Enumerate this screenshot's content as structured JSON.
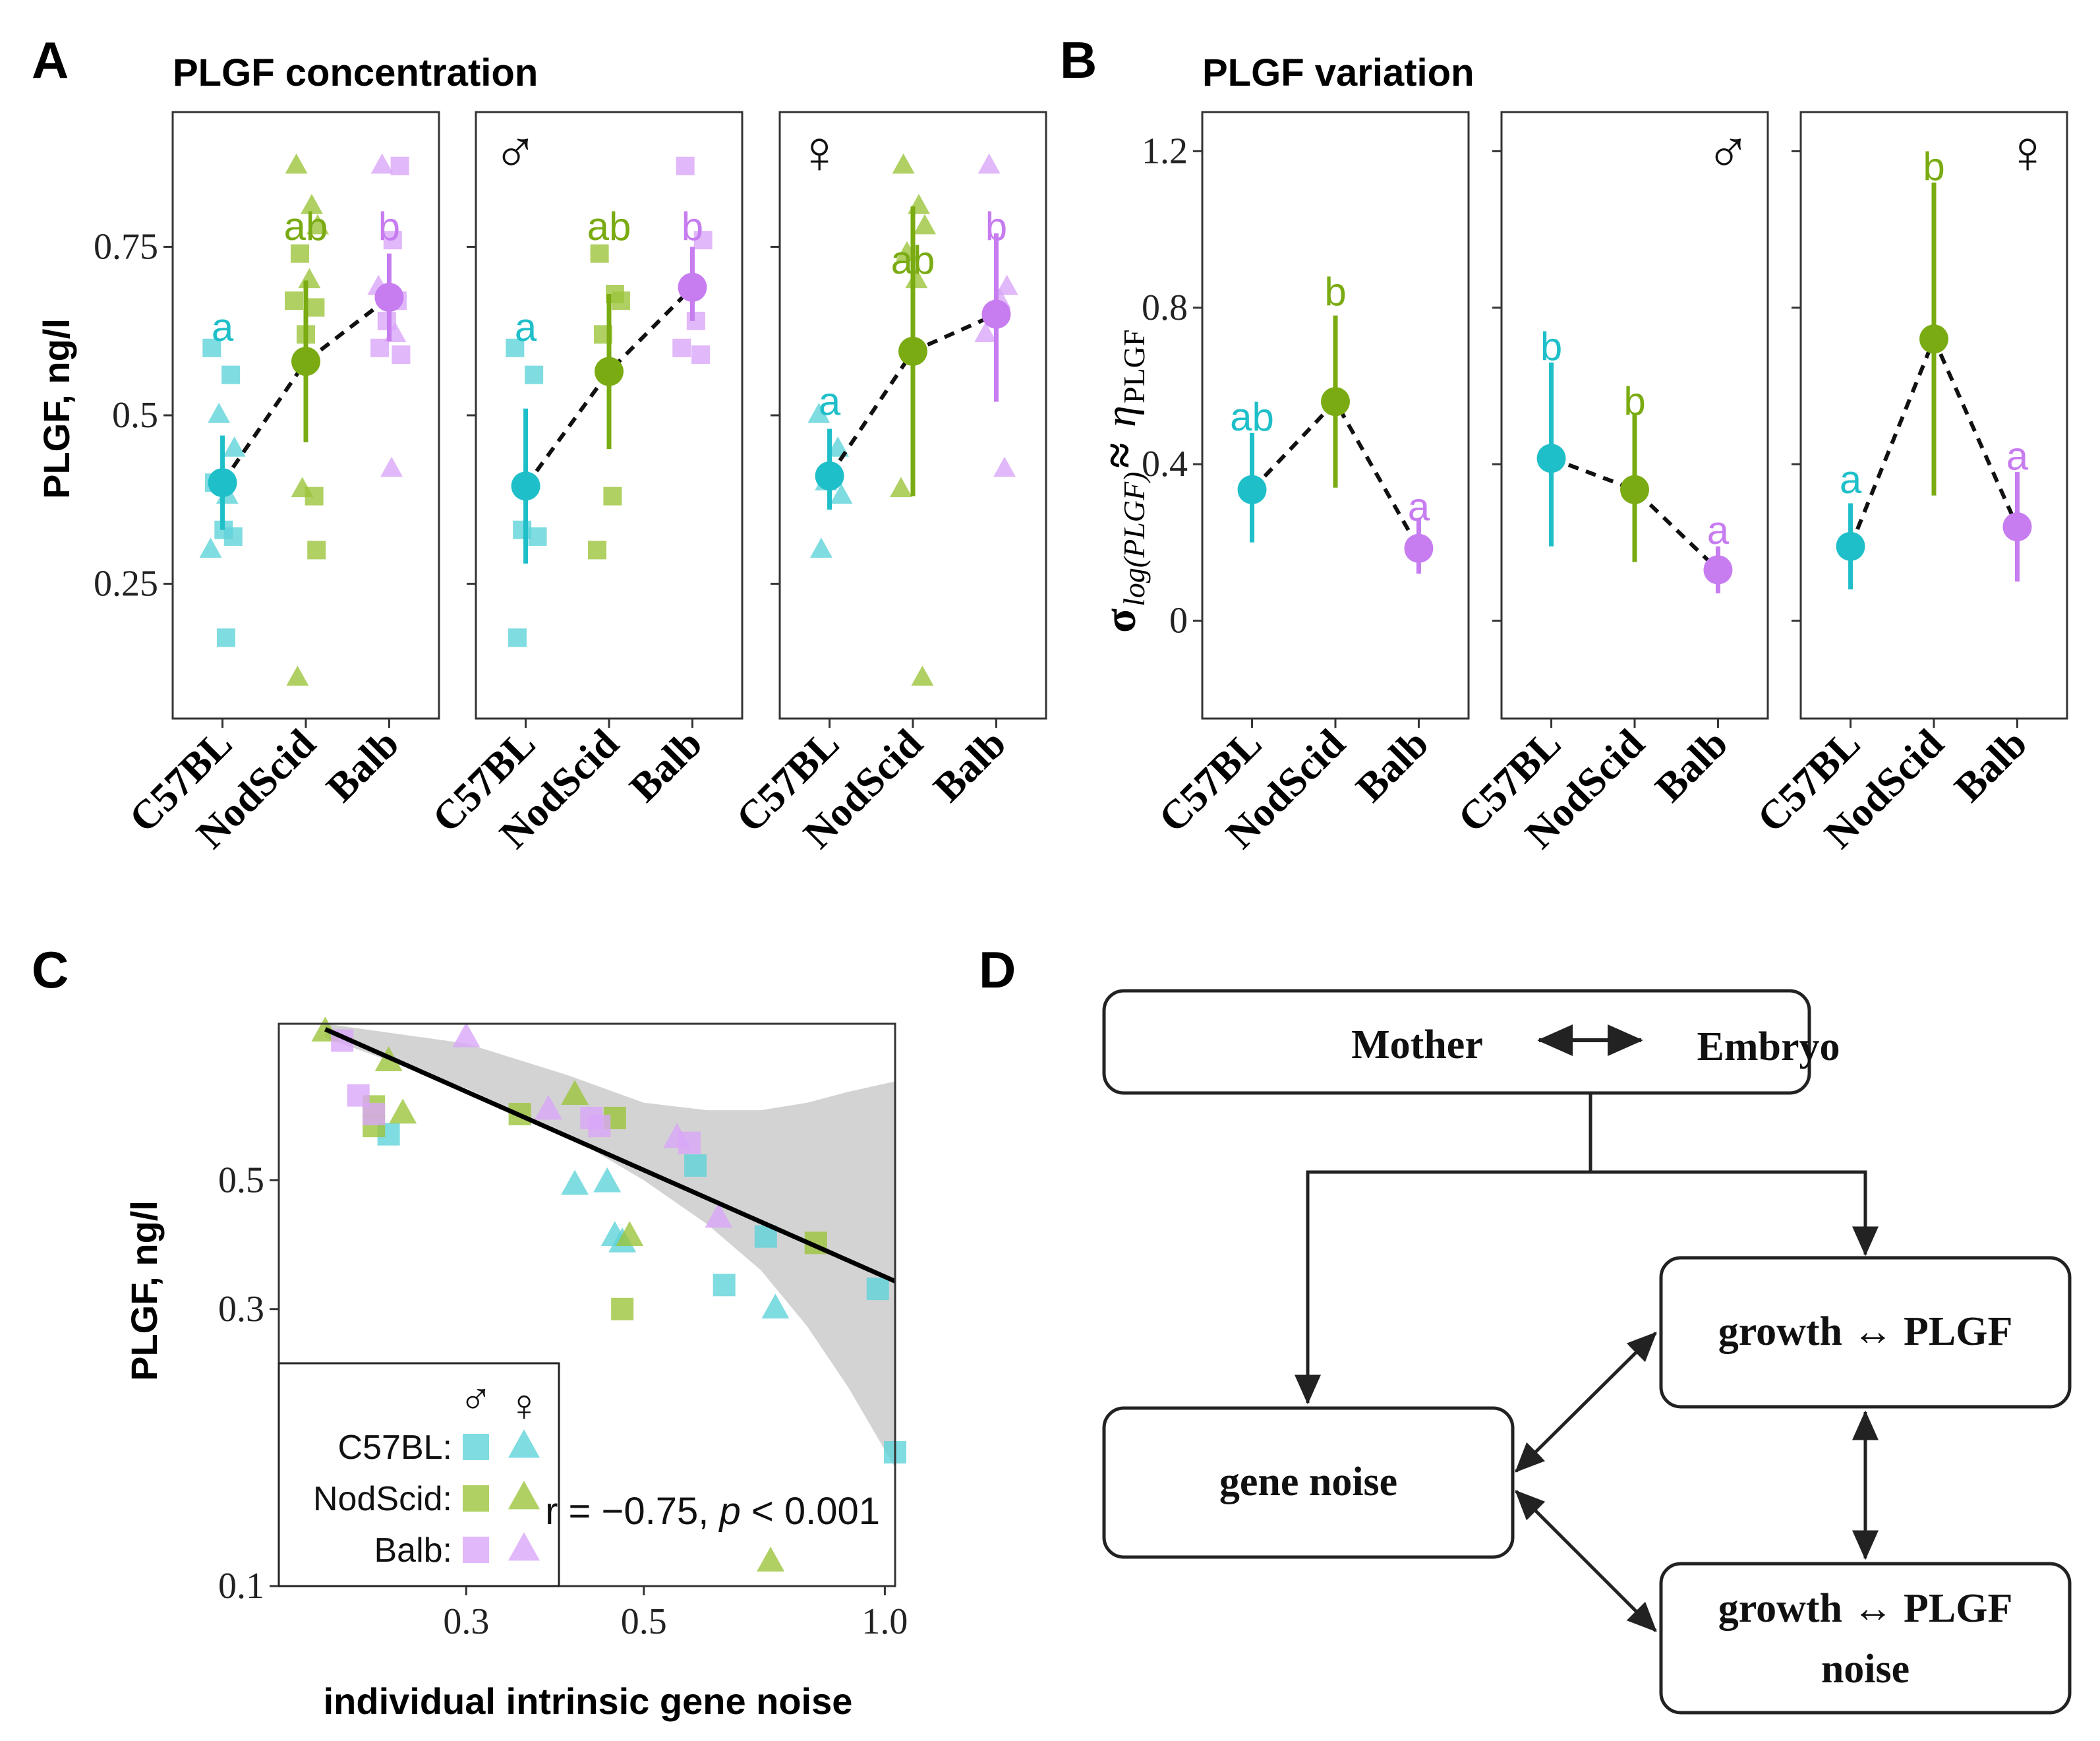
{
  "colors": {
    "C57BL": "#1fbfc9",
    "NodScid": "#7aab12",
    "Balb": "#c77cf0",
    "C57BL_light": "#5fd3da",
    "NodScid_light": "#9cc43c",
    "Balb_light": "#d9a6f7"
  },
  "panelA": {
    "letter": "A",
    "title": "PLGF concentration",
    "ylabel": "PLGF, ng/l",
    "yticks": [
      "0.25",
      "0.5",
      "0.75"
    ],
    "sex_symbols": [
      "",
      "♂",
      "♀"
    ]
  },
  "panelB": {
    "letter": "B",
    "title": "PLGF variation",
    "ylabel_main": "σ",
    "ylabel_sub": "log(PLGF)",
    "ylabel_approx": "≈",
    "ylabel_eta": "η",
    "ylabel_eta_sub": "PLGF",
    "yticks": [
      "0",
      "0.4",
      "0.8",
      "1.2"
    ],
    "sex_symbols": [
      "",
      "♂",
      "♀"
    ]
  },
  "panelC": {
    "letter": "C",
    "xlabel": "individual intrinsic gene noise",
    "ylabel": "PLGF, ng/l",
    "xticks": [
      "0.3",
      "0.5",
      "1.0"
    ],
    "yticks": [
      "0.1",
      "0.3",
      "0.5"
    ],
    "annotation_r": "r = −0.75,",
    "annotation_p": "p",
    "annotation_p_rest": " < 0.001",
    "legend": {
      "male_symbol": "♂",
      "female_symbol": "♀",
      "labels": [
        "C57BL:",
        "NodScid:",
        "Balb:"
      ]
    }
  },
  "panelD": {
    "letter": "D",
    "top_left": "Mother",
    "top_right": "Embryo",
    "box_growth": "growth ↔ PLGF",
    "box_noise": "gene noise",
    "box_growth_noise_1": "growth ↔ PLGF",
    "box_growth_noise_2": "noise"
  },
  "chart_data": [
    {
      "id": "A",
      "type": "scatter",
      "title": "PLGF concentration",
      "ylabel": "PLGF, ng/l",
      "ylim": [
        0.05,
        0.95
      ],
      "categories": [
        "C57BL",
        "NodScid",
        "Balb"
      ],
      "facets": [
        {
          "sex": "all",
          "means": [
            0.4,
            0.58,
            0.675
          ],
          "ci_low": [
            0.33,
            0.46,
            0.61
          ],
          "ci_high": [
            0.47,
            0.7,
            0.74
          ],
          "letters": [
            "a",
            "ab",
            "b"
          ],
          "letter_y": [
            0.63,
            0.78,
            0.78
          ],
          "points": [
            [
              [
                0.6,
                "s"
              ],
              [
                0.56,
                "s"
              ],
              [
                0.5,
                "t"
              ],
              [
                0.45,
                "t"
              ],
              [
                0.4,
                "s"
              ],
              [
                0.38,
                "t"
              ],
              [
                0.33,
                "s"
              ],
              [
                0.32,
                "s"
              ],
              [
                0.3,
                "t"
              ],
              [
                0.17,
                "s"
              ]
            ],
            [
              [
                0.87,
                "t"
              ],
              [
                0.81,
                "t"
              ],
              [
                0.78,
                "t"
              ],
              [
                0.74,
                "s"
              ],
              [
                0.7,
                "t"
              ],
              [
                0.67,
                "s"
              ],
              [
                0.66,
                "s"
              ],
              [
                0.62,
                "s"
              ],
              [
                0.39,
                "t"
              ],
              [
                0.38,
                "s"
              ],
              [
                0.3,
                "s"
              ],
              [
                0.11,
                "t"
              ]
            ],
            [
              [
                0.87,
                "t"
              ],
              [
                0.87,
                "s"
              ],
              [
                0.76,
                "s"
              ],
              [
                0.69,
                "t"
              ],
              [
                0.67,
                "s"
              ],
              [
                0.64,
                "s"
              ],
              [
                0.62,
                "t"
              ],
              [
                0.6,
                "s"
              ],
              [
                0.59,
                "s"
              ],
              [
                0.42,
                "t"
              ]
            ]
          ]
        },
        {
          "sex": "male",
          "means": [
            0.395,
            0.565,
            0.69
          ],
          "ci_low": [
            0.28,
            0.45,
            0.64
          ],
          "ci_high": [
            0.51,
            0.68,
            0.75
          ],
          "letters": [
            "a",
            "ab",
            "b"
          ],
          "letter_y": [
            0.63,
            0.78,
            0.78
          ],
          "points": [
            [
              [
                0.6,
                "s"
              ],
              [
                0.56,
                "s"
              ],
              [
                0.33,
                "s"
              ],
              [
                0.32,
                "s"
              ],
              [
                0.17,
                "s"
              ]
            ],
            [
              [
                0.74,
                "s"
              ],
              [
                0.68,
                "s"
              ],
              [
                0.67,
                "s"
              ],
              [
                0.62,
                "s"
              ],
              [
                0.38,
                "s"
              ],
              [
                0.3,
                "s"
              ]
            ],
            [
              [
                0.87,
                "s"
              ],
              [
                0.76,
                "s"
              ],
              [
                0.64,
                "s"
              ],
              [
                0.6,
                "s"
              ],
              [
                0.59,
                "s"
              ]
            ]
          ]
        },
        {
          "sex": "female",
          "means": [
            0.41,
            0.595,
            0.65
          ],
          "ci_low": [
            0.36,
            0.38,
            0.52
          ],
          "ci_high": [
            0.48,
            0.81,
            0.77
          ],
          "letters": [
            "a",
            "ab",
            "b"
          ],
          "letter_y": [
            0.52,
            0.73,
            0.78
          ],
          "points": [
            [
              [
                0.5,
                "t"
              ],
              [
                0.45,
                "t"
              ],
              [
                0.4,
                "t"
              ],
              [
                0.38,
                "t"
              ],
              [
                0.3,
                "t"
              ]
            ],
            [
              [
                0.87,
                "t"
              ],
              [
                0.81,
                "t"
              ],
              [
                0.78,
                "t"
              ],
              [
                0.74,
                "t"
              ],
              [
                0.7,
                "t"
              ],
              [
                0.39,
                "t"
              ],
              [
                0.11,
                "t"
              ]
            ],
            [
              [
                0.87,
                "t"
              ],
              [
                0.69,
                "t"
              ],
              [
                0.67,
                "t"
              ],
              [
                0.62,
                "t"
              ],
              [
                0.42,
                "t"
              ]
            ]
          ]
        }
      ]
    },
    {
      "id": "B",
      "type": "scatter",
      "title": "PLGF variation",
      "ylabel": "σ log(PLGF) ≈ η PLGF",
      "ylim": [
        -0.25,
        1.3
      ],
      "categories": [
        "C57BL",
        "NodScid",
        "Balb"
      ],
      "facets": [
        {
          "sex": "all",
          "means": [
            0.335,
            0.56,
            0.185
          ],
          "ci_low": [
            0.2,
            0.34,
            0.12
          ],
          "ci_high": [
            0.48,
            0.78,
            0.26
          ],
          "letters": [
            "ab",
            "b",
            "a"
          ],
          "letter_y": [
            0.52,
            0.84,
            0.29
          ]
        },
        {
          "sex": "male",
          "means": [
            0.415,
            0.335,
            0.13
          ],
          "ci_low": [
            0.19,
            0.15,
            0.07
          ],
          "ci_high": [
            0.66,
            0.53,
            0.19
          ],
          "letters": [
            "b",
            "b",
            "a"
          ],
          "letter_y": [
            0.7,
            0.56,
            0.23
          ]
        },
        {
          "sex": "female",
          "means": [
            0.19,
            0.72,
            0.24
          ],
          "ci_low": [
            0.08,
            0.32,
            0.1
          ],
          "ci_high": [
            0.3,
            1.12,
            0.38
          ],
          "letters": [
            "a",
            "b",
            "a"
          ],
          "letter_y": [
            0.36,
            1.16,
            0.42
          ]
        }
      ]
    },
    {
      "id": "C",
      "type": "scatter",
      "xlabel": "individual intrinsic gene noise",
      "ylabel": "PLGF, ng/l",
      "x_scale": "log",
      "y_scale": "log",
      "xlim": [
        0.175,
        1.03
      ],
      "ylim": [
        0.1,
        0.93
      ],
      "regression": {
        "x": [
          0.2,
          1.03
        ],
        "y": [
          0.91,
          0.335
        ]
      },
      "confidence_band": {
        "x": [
          0.2,
          0.3,
          0.4,
          0.5,
          0.6,
          0.7,
          0.8,
          0.9,
          1.03
        ],
        "upper": [
          0.93,
          0.86,
          0.76,
          0.68,
          0.66,
          0.66,
          0.68,
          0.71,
          0.74
        ],
        "lower": [
          0.88,
          0.72,
          0.6,
          0.5,
          0.42,
          0.35,
          0.28,
          0.22,
          0.16
        ]
      },
      "series": [
        {
          "name": "C57BL",
          "points": [
            [
              0.24,
              0.6,
              "s"
            ],
            [
              0.45,
              0.495,
              "t"
            ],
            [
              0.46,
              0.4,
              "t"
            ],
            [
              0.47,
              0.39,
              "t"
            ],
            [
              0.58,
              0.53,
              "s"
            ],
            [
              0.71,
              0.4,
              "s"
            ],
            [
              0.73,
              0.3,
              "t"
            ],
            [
              0.63,
              0.33,
              "s"
            ],
            [
              0.98,
              0.325,
              "s"
            ],
            [
              1.03,
              0.17,
              "s"
            ],
            [
              0.41,
              0.49,
              "t"
            ]
          ]
        },
        {
          "name": "NodScid",
          "points": [
            [
              0.2,
              0.9,
              "t"
            ],
            [
              0.23,
              0.67,
              "s"
            ],
            [
              0.23,
              0.62,
              "s"
            ],
            [
              0.24,
              0.8,
              "t"
            ],
            [
              0.25,
              0.65,
              "t"
            ],
            [
              0.35,
              0.65,
              "s"
            ],
            [
              0.41,
              0.7,
              "t"
            ],
            [
              0.46,
              0.64,
              "s"
            ],
            [
              0.48,
              0.4,
              "t"
            ],
            [
              0.47,
              0.3,
              "s"
            ],
            [
              0.82,
              0.39,
              "s"
            ],
            [
              0.72,
              0.11,
              "t"
            ]
          ]
        },
        {
          "name": "Balb",
          "points": [
            [
              0.21,
              0.87,
              "s"
            ],
            [
              0.22,
              0.7,
              "s"
            ],
            [
              0.23,
              0.65,
              "s"
            ],
            [
              0.3,
              0.88,
              "t"
            ],
            [
              0.38,
              0.66,
              "t"
            ],
            [
              0.43,
              0.64,
              "s"
            ],
            [
              0.44,
              0.62,
              "s"
            ],
            [
              0.55,
              0.59,
              "t"
            ],
            [
              0.57,
              0.58,
              "s"
            ],
            [
              0.62,
              0.43,
              "t"
            ]
          ]
        }
      ]
    },
    {
      "id": "D",
      "type": "diagram",
      "nodes": [
        "Mother ⟷ Embryo",
        "growth ↔ PLGF",
        "gene noise",
        "growth ↔ PLGF noise"
      ]
    }
  ]
}
